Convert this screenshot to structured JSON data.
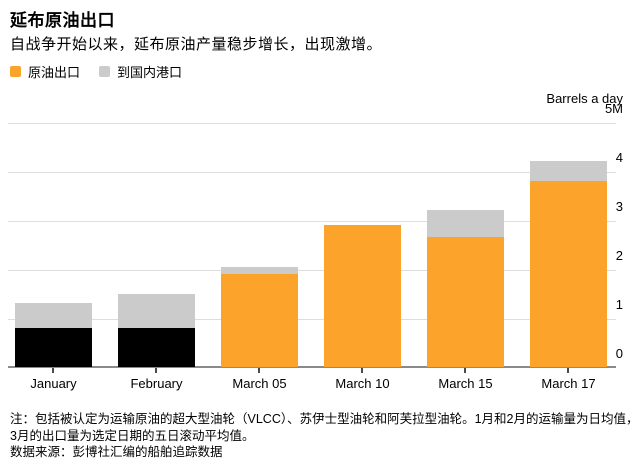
{
  "header": {
    "title": "延布原油出口",
    "subtitle": "自战争开始以来，延布原油产量稳步增长，出现激增。"
  },
  "legend": {
    "items": [
      {
        "label": "原油出口",
        "color": "#FCA32C"
      },
      {
        "label": "到国内港口",
        "color": "#CBCBCB"
      }
    ]
  },
  "chart_data": {
    "type": "bar",
    "stacked": true,
    "title": "延布原油出口",
    "unit_label": "Barrels a day",
    "categories": [
      "January",
      "February",
      "March 05",
      "March 10",
      "March 15",
      "March 17"
    ],
    "series": [
      {
        "name": "原油出口",
        "values": [
          0.8,
          0.8,
          1.9,
          2.9,
          2.65,
          3.8
        ],
        "bar_colors": [
          "#000000",
          "#000000",
          "#FCA32C",
          "#FCA32C",
          "#FCA32C",
          "#FCA32C"
        ]
      },
      {
        "name": "到国内港口",
        "values": [
          0.5,
          0.7,
          0.15,
          0,
          0.55,
          0.4
        ],
        "color": "#CBCBCB"
      }
    ],
    "y_axis": {
      "min": 0,
      "max": 5,
      "grid": true,
      "labels_position": "right",
      "ticks": [
        {
          "value": 5,
          "label": "5M"
        },
        {
          "value": 4,
          "label": "4"
        },
        {
          "value": 3,
          "label": "3"
        },
        {
          "value": 2,
          "label": "2"
        },
        {
          "value": 1,
          "label": "1"
        },
        {
          "value": 0,
          "label": "0"
        }
      ]
    }
  },
  "footnotes": {
    "lines": [
      "注：包括被认定为运输原油的超大型油轮（VLCC）、苏伊士型油轮和阿芙拉型油轮。1月和2月的运输量为日均值，而",
      "3月的出口量为选定日期的五日滚动平均值。",
      "数据来源：彭博社汇编的船舶追踪数据"
    ]
  },
  "colors": {
    "accent_orange": "#FCA32C",
    "domestic_gray": "#CBCBCB",
    "jan_feb_black": "#000000",
    "gridline": "#DDDDDD",
    "baseline": "#8A8A8A",
    "text": "#000000"
  }
}
